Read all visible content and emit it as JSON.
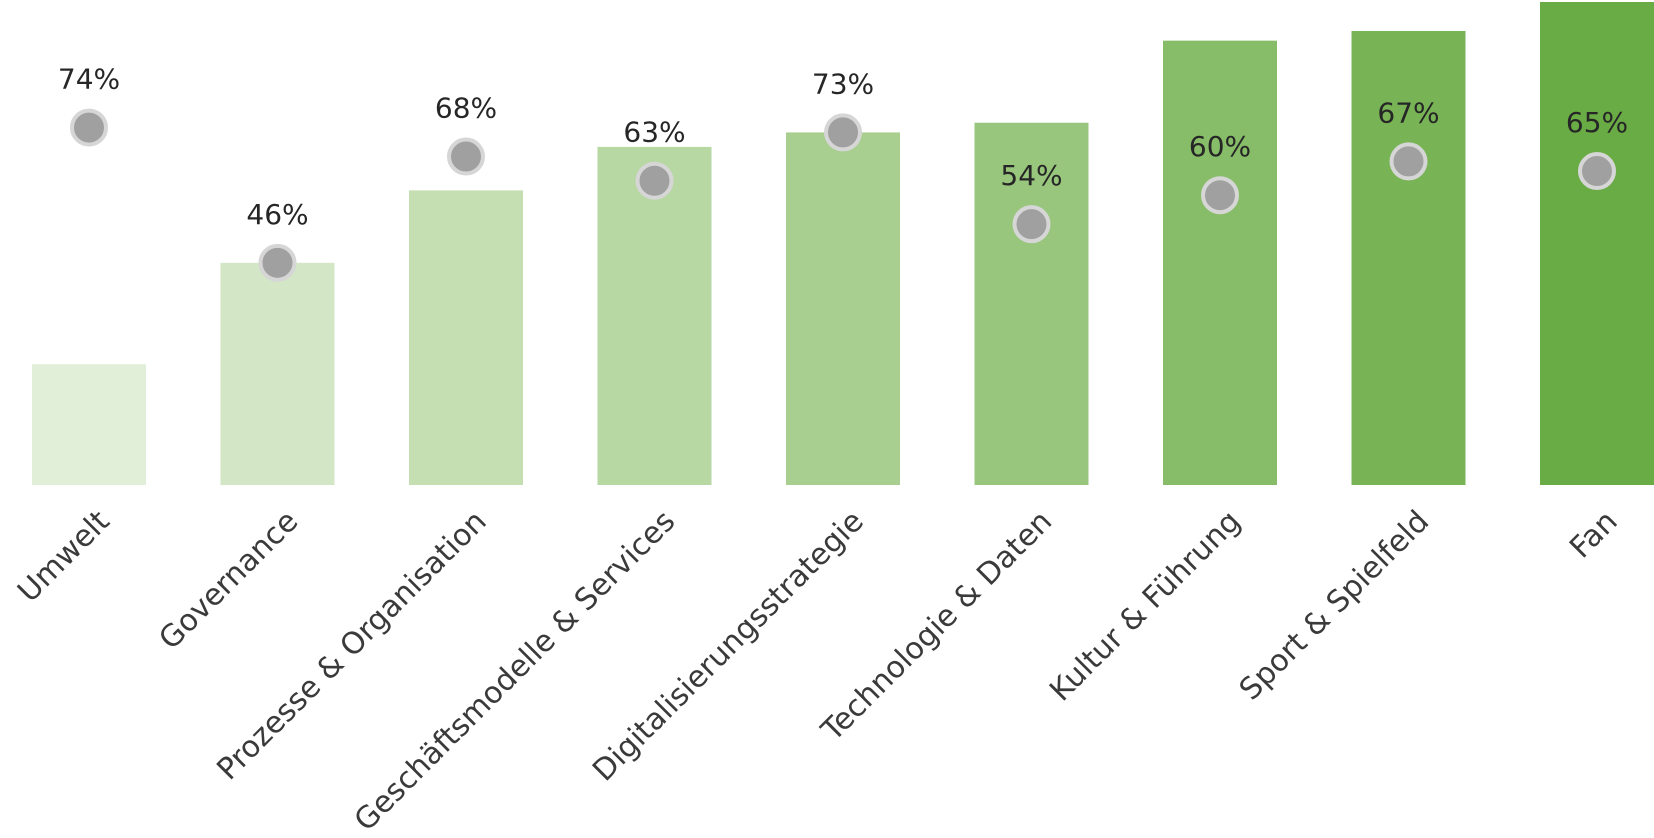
{
  "chart_data": {
    "type": "bar",
    "categories": [
      "Umwelt",
      "Governance",
      "Prozesse & Organisation",
      "Geschäftsmodelle & Services",
      "Digitalisierungsstrategie",
      "Technologie & Daten",
      "Kultur & Führung",
      "Sport & Spielfeld",
      "Fan"
    ],
    "series": [
      {
        "values": [
          25,
          46,
          61,
          70,
          73,
          75,
          92,
          94,
          100
        ],
        "colors": [
          "#e1eed8",
          "#d3e6c6",
          "#c5dfb3",
          "#b7d7a3",
          "#a8cf90",
          "#99c67d",
          "#87bd68",
          "#78b456",
          "#69ab44"
        ]
      },
      {
        "values": [
          74,
          46,
          68,
          63,
          73,
          54,
          60,
          67,
          65
        ],
        "labels": [
          "74%",
          "46%",
          "68%",
          "63%",
          "73%",
          "54%",
          "60%",
          "67%",
          "65%"
        ],
        "marker": "circle",
        "color": "#a0a0a0"
      }
    ],
    "ylim": [
      0,
      100
    ]
  }
}
